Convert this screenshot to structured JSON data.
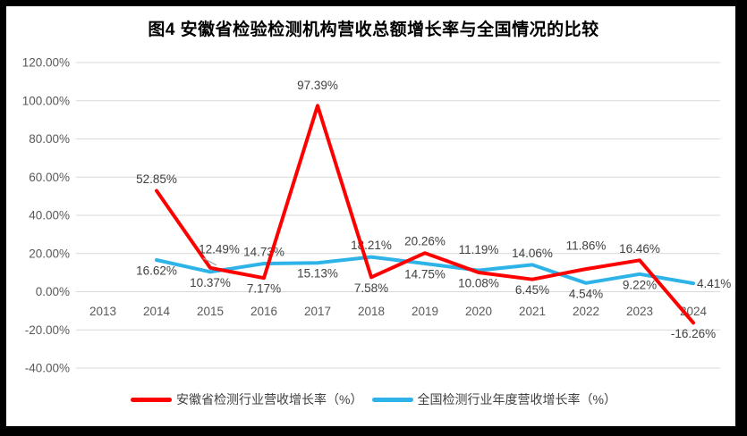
{
  "title": "图4  安徽省检验检测机构营收总额增长率与全国情况的比较",
  "colors": {
    "frame": "#000000",
    "background": "#FFFFFF",
    "grid": "#D9D9D9",
    "axis_text": "#595959",
    "data_label": "#404040",
    "leader": "#A6A6A6",
    "anhui_red": "#FF0000",
    "national_blue": "#2EB3E8"
  },
  "chart_data": {
    "type": "line",
    "title": "图4  安徽省检验检测机构营收总额增长率与全国情况的比较",
    "categories": [
      "2013",
      "2014",
      "2015",
      "2016",
      "2017",
      "2018",
      "2019",
      "2020",
      "2021",
      "2022",
      "2023",
      "2024"
    ],
    "series": [
      {
        "id": "anhui",
        "name": "安徽省检测行业营收增长率（%）",
        "color": "#FF0000",
        "values": [
          null,
          52.85,
          12.49,
          7.17,
          97.39,
          7.58,
          20.26,
          10.08,
          6.45,
          11.86,
          16.46,
          -16.26
        ],
        "label_pos": [
          null,
          "above",
          {
            "pos": "above",
            "dx": 10,
            "dy": -21,
            "leader": true
          },
          "below",
          {
            "pos": "above",
            "dy": -23
          },
          "below",
          "above",
          "below",
          "below",
          {
            "pos": "above",
            "dy": -26
          },
          "above",
          "below"
        ]
      },
      {
        "id": "national",
        "name": "全国检测行业年度营收增长率（%）",
        "color": "#2EB3E8",
        "values": [
          null,
          16.62,
          10.37,
          14.73,
          15.13,
          18.21,
          14.75,
          11.19,
          14.06,
          4.54,
          9.22,
          4.41
        ],
        "label_pos": [
          null,
          "below",
          "below",
          "above",
          "below",
          "above",
          "below",
          {
            "pos": "above",
            "dy": -23
          },
          "above",
          "below",
          "below",
          "right"
        ]
      }
    ],
    "xlabel": "",
    "ylabel": "",
    "ylim": [
      -40,
      120
    ],
    "ytick_step": 20,
    "y_tick_format": "0.00%",
    "grid": true,
    "legend_position": "bottom"
  }
}
